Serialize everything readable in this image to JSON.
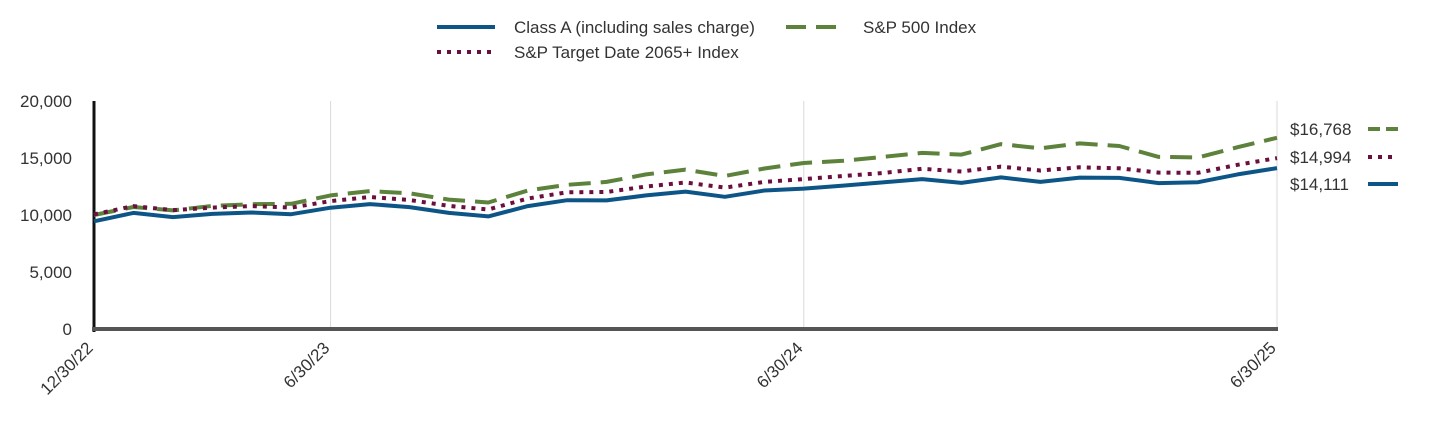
{
  "chart_data": {
    "type": "line",
    "title": "",
    "xlabel": "",
    "ylabel": "",
    "ylim": [
      0,
      20000
    ],
    "y_ticks": [
      0,
      5000,
      10000,
      15000,
      20000
    ],
    "y_tick_labels": [
      "0",
      "5,000",
      "10,000",
      "15,000",
      "20,000"
    ],
    "x_tick_labels": [
      "12/30/22",
      "6/30/23",
      "6/30/24",
      "6/30/25"
    ],
    "x_tick_index": [
      0,
      6,
      18,
      30
    ],
    "x": [
      "12/30/22",
      "1/31/23",
      "2/28/23",
      "3/31/23",
      "4/30/23",
      "5/31/23",
      "6/30/23",
      "7/31/23",
      "8/31/23",
      "9/30/23",
      "10/31/23",
      "11/30/23",
      "12/31/23",
      "1/31/24",
      "2/29/24",
      "3/31/24",
      "4/30/24",
      "5/31/24",
      "6/30/24",
      "7/31/24",
      "8/31/24",
      "9/30/24",
      "10/31/24",
      "11/30/24",
      "12/31/24",
      "1/31/25",
      "2/28/25",
      "3/31/25",
      "4/30/25",
      "5/31/25",
      "6/30/25"
    ],
    "grid": "vertical at x ticks",
    "legend_position": "top",
    "series": [
      {
        "name": "Class A (including sales charge)",
        "color": "#0d5587",
        "dash": "solid",
        "end_label": "$14,111",
        "values": [
          9450,
          10180,
          9820,
          10100,
          10220,
          10070,
          10640,
          10960,
          10690,
          10180,
          9880,
          10780,
          11300,
          11280,
          11720,
          12050,
          11600,
          12150,
          12320,
          12580,
          12860,
          13150,
          12820,
          13300,
          12900,
          13280,
          13250,
          12800,
          12880,
          13560,
          14111
        ]
      },
      {
        "name": "S&P 500 Index",
        "color": "#5d823b",
        "dash": "dashed",
        "end_label": "$16,768",
        "values": [
          10000,
          10700,
          10400,
          10800,
          10950,
          10980,
          11720,
          12100,
          11900,
          11350,
          11100,
          12150,
          12650,
          12900,
          13560,
          13980,
          13420,
          14080,
          14560,
          14750,
          15100,
          15450,
          15300,
          16220,
          15850,
          16280,
          16050,
          15100,
          15050,
          15950,
          16768
        ]
      },
      {
        "name": "S&P Target Date 2065+ Index",
        "color": "#6b0f3f",
        "dash": "dotted",
        "end_label": "$14,994",
        "values": [
          10050,
          10780,
          10430,
          10650,
          10780,
          10650,
          11220,
          11580,
          11320,
          10800,
          10480,
          11450,
          11990,
          12020,
          12500,
          12850,
          12400,
          12900,
          13150,
          13420,
          13680,
          14050,
          13820,
          14250,
          13900,
          14180,
          14100,
          13720,
          13700,
          14400,
          14994
        ]
      }
    ]
  }
}
